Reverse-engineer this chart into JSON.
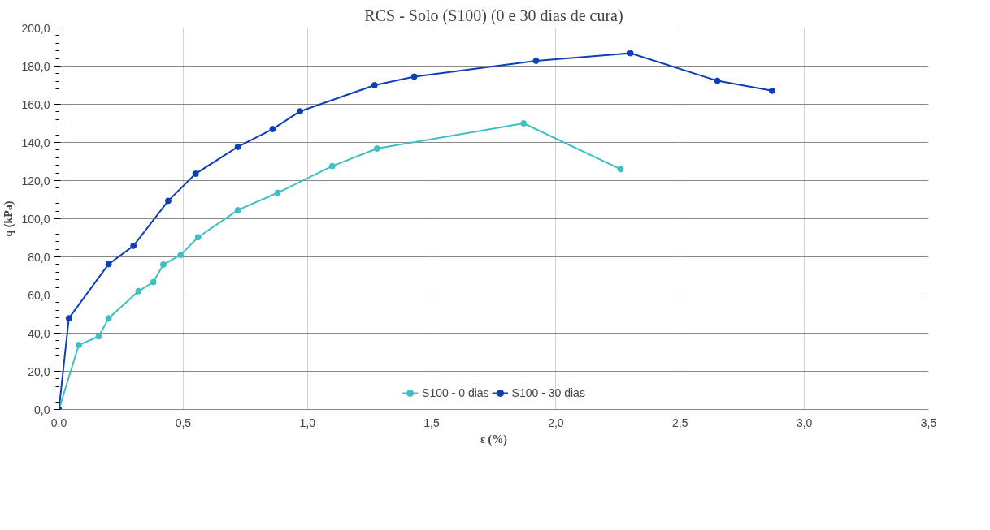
{
  "chart_data": {
    "type": "line",
    "title": "RCS - Solo (S100) (0 e 30 dias de cura)",
    "xlabel": "ε (%)",
    "ylabel": "q (kPa)",
    "xlim": [
      0,
      3.5
    ],
    "ylim": [
      0,
      200
    ],
    "xticks": [
      {
        "value": 0,
        "label": "0,0"
      },
      {
        "value": 0.5,
        "label": "0,5"
      },
      {
        "value": 1,
        "label": "1,0"
      },
      {
        "value": 1.5,
        "label": "1,5"
      },
      {
        "value": 2,
        "label": "2,0"
      },
      {
        "value": 2.5,
        "label": "2,5"
      },
      {
        "value": 3,
        "label": "3,0"
      },
      {
        "value": 3.5,
        "label": "3,5"
      }
    ],
    "yticks": [
      {
        "value": 0,
        "label": "0,0"
      },
      {
        "value": 20,
        "label": "20,0"
      },
      {
        "value": 40,
        "label": "40,0"
      },
      {
        "value": 60,
        "label": "60,0"
      },
      {
        "value": 80,
        "label": "80,0"
      },
      {
        "value": 100,
        "label": "100,0"
      },
      {
        "value": 120,
        "label": "120,0"
      },
      {
        "value": 140,
        "label": "140,0"
      },
      {
        "value": 160,
        "label": "160,0"
      },
      {
        "value": 180,
        "label": "180,0"
      },
      {
        "value": 200,
        "label": "200,0"
      }
    ],
    "grid": true,
    "legend": "bottom",
    "marker": "circle",
    "line_style": "solid",
    "series": [
      {
        "name": "S100 - 0 dias",
        "color": "#3fbfc4",
        "x": [
          0,
          0.08,
          0.16,
          0.2,
          0.32,
          0.38,
          0.42,
          0.49,
          0.56,
          0.72,
          0.88,
          1.1,
          1.28,
          1.87,
          2.26
        ],
        "values": [
          0,
          33.8,
          38.3,
          47.8,
          62,
          66.8,
          76,
          81,
          90.3,
          104.5,
          113.6,
          127.6,
          136.8,
          150,
          126
        ]
      },
      {
        "name": "S100 - 30 dias",
        "color": "#0e3fb5",
        "x": [
          0,
          0.04,
          0.2,
          0.3,
          0.44,
          0.55,
          0.72,
          0.86,
          0.97,
          1.27,
          1.43,
          1.92,
          2.3,
          2.65,
          2.87
        ],
        "values": [
          0,
          47.8,
          76.2,
          85.8,
          109.4,
          123.6,
          137.7,
          147,
          156.3,
          170,
          174.5,
          182.8,
          186.8,
          172.3,
          167.1
        ]
      }
    ]
  }
}
